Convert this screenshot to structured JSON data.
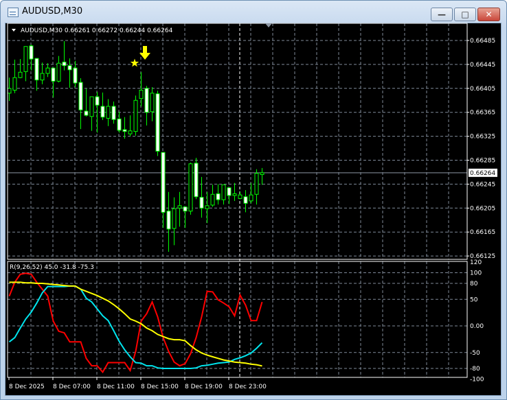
{
  "window": {
    "title": "AUDUSD,M30",
    "buttons": {
      "minimize": "—",
      "maximize": "□",
      "close": "✕"
    }
  },
  "chart": {
    "header": "AUDUSD,M30  0.66261 0.66272 0.66244 0.66264",
    "current_price": "0.66264",
    "price_axis": [
      "0.66485",
      "0.66445",
      "0.66405",
      "0.66365",
      "0.66325",
      "0.66285",
      "0.66245",
      "0.66205",
      "0.66165",
      "0.66125"
    ],
    "time_axis": [
      "8 Dec 2025",
      "8 Dec 07:00",
      "8 Dec 11:00",
      "8 Dec 15:00",
      "8 Dec 19:00",
      "8 Dec 23:00"
    ],
    "colors": {
      "bull_body": "#000000",
      "bear_body": "#ffffff",
      "candle_outline": "#00ff00",
      "grid": "#7f8a99",
      "marker": "#ffff00"
    },
    "markers": [
      {
        "type": "down-arrow",
        "candle": 24
      },
      {
        "type": "star",
        "candle": 24
      }
    ]
  },
  "chart_data": [
    {
      "type": "candlestick",
      "symbol": "AUDUSD",
      "timeframe": "M30",
      "ylim": [
        0.66105,
        0.66505
      ],
      "ohlc": [
        [
          0.66397,
          0.66423,
          0.66384,
          0.66405
        ],
        [
          0.66402,
          0.66453,
          0.66397,
          0.66423
        ],
        [
          0.66423,
          0.66454,
          0.66422,
          0.66432
        ],
        [
          0.66433,
          0.66475,
          0.66417,
          0.66475
        ],
        [
          0.66476,
          0.66478,
          0.66435,
          0.66454
        ],
        [
          0.66455,
          0.66455,
          0.66401,
          0.66419
        ],
        [
          0.66419,
          0.66448,
          0.66412,
          0.6643
        ],
        [
          0.6643,
          0.66447,
          0.66424,
          0.66439
        ],
        [
          0.66439,
          0.66439,
          0.6639,
          0.66417
        ],
        [
          0.66417,
          0.66459,
          0.66415,
          0.66447
        ],
        [
          0.66449,
          0.66484,
          0.66435,
          0.66443
        ],
        [
          0.66443,
          0.66455,
          0.66406,
          0.66436
        ],
        [
          0.66439,
          0.66451,
          0.66407,
          0.66414
        ],
        [
          0.66415,
          0.66422,
          0.66337,
          0.66369
        ],
        [
          0.66367,
          0.66404,
          0.66358,
          0.6636
        ],
        [
          0.66358,
          0.66391,
          0.66334,
          0.66391
        ],
        [
          0.66391,
          0.66399,
          0.66331,
          0.66377
        ],
        [
          0.66375,
          0.66398,
          0.66352,
          0.66357
        ],
        [
          0.66355,
          0.66387,
          0.66342,
          0.66375
        ],
        [
          0.66375,
          0.66383,
          0.66346,
          0.66353
        ],
        [
          0.66354,
          0.66366,
          0.66331,
          0.66335
        ],
        [
          0.66336,
          0.66357,
          0.66321,
          0.66333
        ],
        [
          0.66329,
          0.6636,
          0.66325,
          0.66334
        ],
        [
          0.66333,
          0.66393,
          0.66326,
          0.66385
        ],
        [
          0.66388,
          0.66432,
          0.66375,
          0.66402
        ],
        [
          0.66405,
          0.66409,
          0.66343,
          0.66365
        ],
        [
          0.66366,
          0.66407,
          0.6635,
          0.66397
        ],
        [
          0.66396,
          0.66401,
          0.66292,
          0.663
        ],
        [
          0.66298,
          0.66298,
          0.66172,
          0.66198
        ],
        [
          0.662,
          0.66232,
          0.66132,
          0.6617
        ],
        [
          0.66171,
          0.66223,
          0.66143,
          0.66204
        ],
        [
          0.66205,
          0.66232,
          0.66174,
          0.66209
        ],
        [
          0.66207,
          0.66207,
          0.66172,
          0.662
        ],
        [
          0.662,
          0.66281,
          0.66194,
          0.66279
        ],
        [
          0.6628,
          0.66289,
          0.6622,
          0.66224
        ],
        [
          0.66223,
          0.66257,
          0.66189,
          0.66205
        ],
        [
          0.66204,
          0.66232,
          0.6618,
          0.66209
        ],
        [
          0.6621,
          0.66244,
          0.66207,
          0.66228
        ],
        [
          0.66229,
          0.66245,
          0.66211,
          0.66219
        ],
        [
          0.66219,
          0.66244,
          0.66211,
          0.66244
        ],
        [
          0.66239,
          0.66239,
          0.66212,
          0.66226
        ],
        [
          0.66226,
          0.66247,
          0.66217,
          0.66229
        ],
        [
          0.66221,
          0.66232,
          0.6622,
          0.66227
        ],
        [
          0.66224,
          0.66235,
          0.66198,
          0.66213
        ],
        [
          0.66217,
          0.66247,
          0.66213,
          0.66227
        ],
        [
          0.66228,
          0.6627,
          0.66211,
          0.66263
        ],
        [
          0.66261,
          0.66272,
          0.66244,
          0.66264
        ]
      ]
    },
    {
      "type": "line",
      "title": "R(9,26,52) 45.0 -31.8 -75.3",
      "ylim": [
        -100,
        120
      ],
      "yticks": [
        "120",
        "100",
        "80",
        "50",
        "0.00",
        "-50",
        "-80",
        "-100"
      ],
      "grid_levels": [
        100,
        80,
        50,
        0,
        -50,
        -80
      ],
      "series": [
        {
          "color": "#ff0000",
          "values": [
            56,
            82,
            97,
            99,
            97,
            82,
            69,
            56,
            9,
            -10,
            -13,
            -30,
            -30,
            -30,
            -61,
            -75,
            -75,
            -87,
            -69,
            -69,
            -69,
            -69,
            -84,
            -48,
            9,
            23,
            45,
            17,
            -22,
            -48,
            -68,
            -75,
            -71,
            -52,
            -22,
            17,
            65,
            64,
            49,
            43,
            36,
            19,
            58,
            39,
            10,
            10,
            45.0
          ]
        },
        {
          "color": "#00e5ee",
          "values": [
            -30,
            -22,
            -4,
            13,
            26,
            43,
            62,
            74,
            74,
            74,
            74,
            75,
            75,
            69,
            52,
            45,
            32,
            19,
            10,
            -9,
            -29,
            -45,
            -58,
            -69,
            -70,
            -75,
            -75,
            -79,
            -80,
            -80,
            -80,
            -80,
            -80,
            -80,
            -79,
            -75,
            -74,
            -72,
            -70,
            -69,
            -68,
            -63,
            -60,
            -56,
            -51,
            -42,
            -31.8
          ]
        },
        {
          "color": "#ffff00",
          "values": [
            82,
            82,
            82,
            81,
            81,
            80,
            80,
            79,
            78,
            77,
            76,
            75,
            75,
            69,
            65,
            61,
            57,
            52,
            47,
            40,
            32,
            23,
            13,
            9,
            4,
            -4,
            -9,
            -16,
            -20,
            -24,
            -26,
            -26,
            -28,
            -37,
            -45,
            -51,
            -55,
            -58,
            -61,
            -64,
            -66,
            -68,
            -69,
            -70,
            -72,
            -73,
            -75.3
          ]
        }
      ]
    }
  ]
}
